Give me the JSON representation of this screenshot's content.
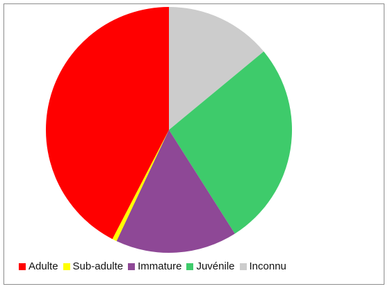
{
  "chart_data": {
    "type": "pie",
    "title": "",
    "start_angle_deg": 0,
    "direction": "clockwise",
    "slices": [
      {
        "label": "Inconnu",
        "value": 14.0,
        "color": "#cccccc"
      },
      {
        "label": "Juvénile",
        "value": 27.0,
        "color": "#3ecb6b"
      },
      {
        "label": "Immature",
        "value": 16.0,
        "color": "#8e4896"
      },
      {
        "label": "Sub-adulte",
        "value": 0.6,
        "color": "#ffff00"
      },
      {
        "label": "Adulte",
        "value": 42.4,
        "color": "#ff0000"
      }
    ],
    "legend": {
      "placement": "bottom",
      "order": [
        "Adulte",
        "Sub-adulte",
        "Immature",
        "Juvénile",
        "Inconnu"
      ]
    }
  }
}
